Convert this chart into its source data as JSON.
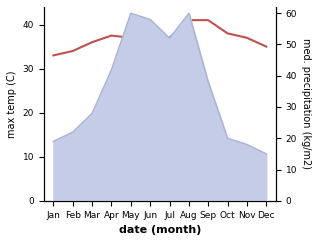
{
  "months": [
    "Jan",
    "Feb",
    "Mar",
    "Apr",
    "May",
    "Jun",
    "Jul",
    "Aug",
    "Sep",
    "Oct",
    "Nov",
    "Dec"
  ],
  "x": [
    0,
    1,
    2,
    3,
    4,
    5,
    6,
    7,
    8,
    9,
    10,
    11
  ],
  "precipitation": [
    19,
    22,
    28,
    42,
    60,
    58,
    52,
    60,
    38,
    20,
    18,
    15
  ],
  "temperature": [
    33,
    34,
    36,
    37.5,
    37,
    36.5,
    37,
    41,
    41,
    38,
    37,
    35
  ],
  "temp_color": "#c0504d",
  "precip_fill_color": "#c5cce8",
  "precip_line_color": "#aab4d4",
  "xlabel": "date (month)",
  "ylabel_left": "max temp (C)",
  "ylabel_right": "med. precipitation (kg/m2)",
  "ylim_left": [
    0,
    44
  ],
  "ylim_right": [
    0,
    62
  ],
  "yticks_left": [
    0,
    10,
    20,
    30,
    40
  ],
  "yticks_right": [
    0,
    10,
    20,
    30,
    40,
    50,
    60
  ],
  "background_color": "#ffffff",
  "temp_linewidth": 1.5,
  "precip_linewidth": 1.0
}
